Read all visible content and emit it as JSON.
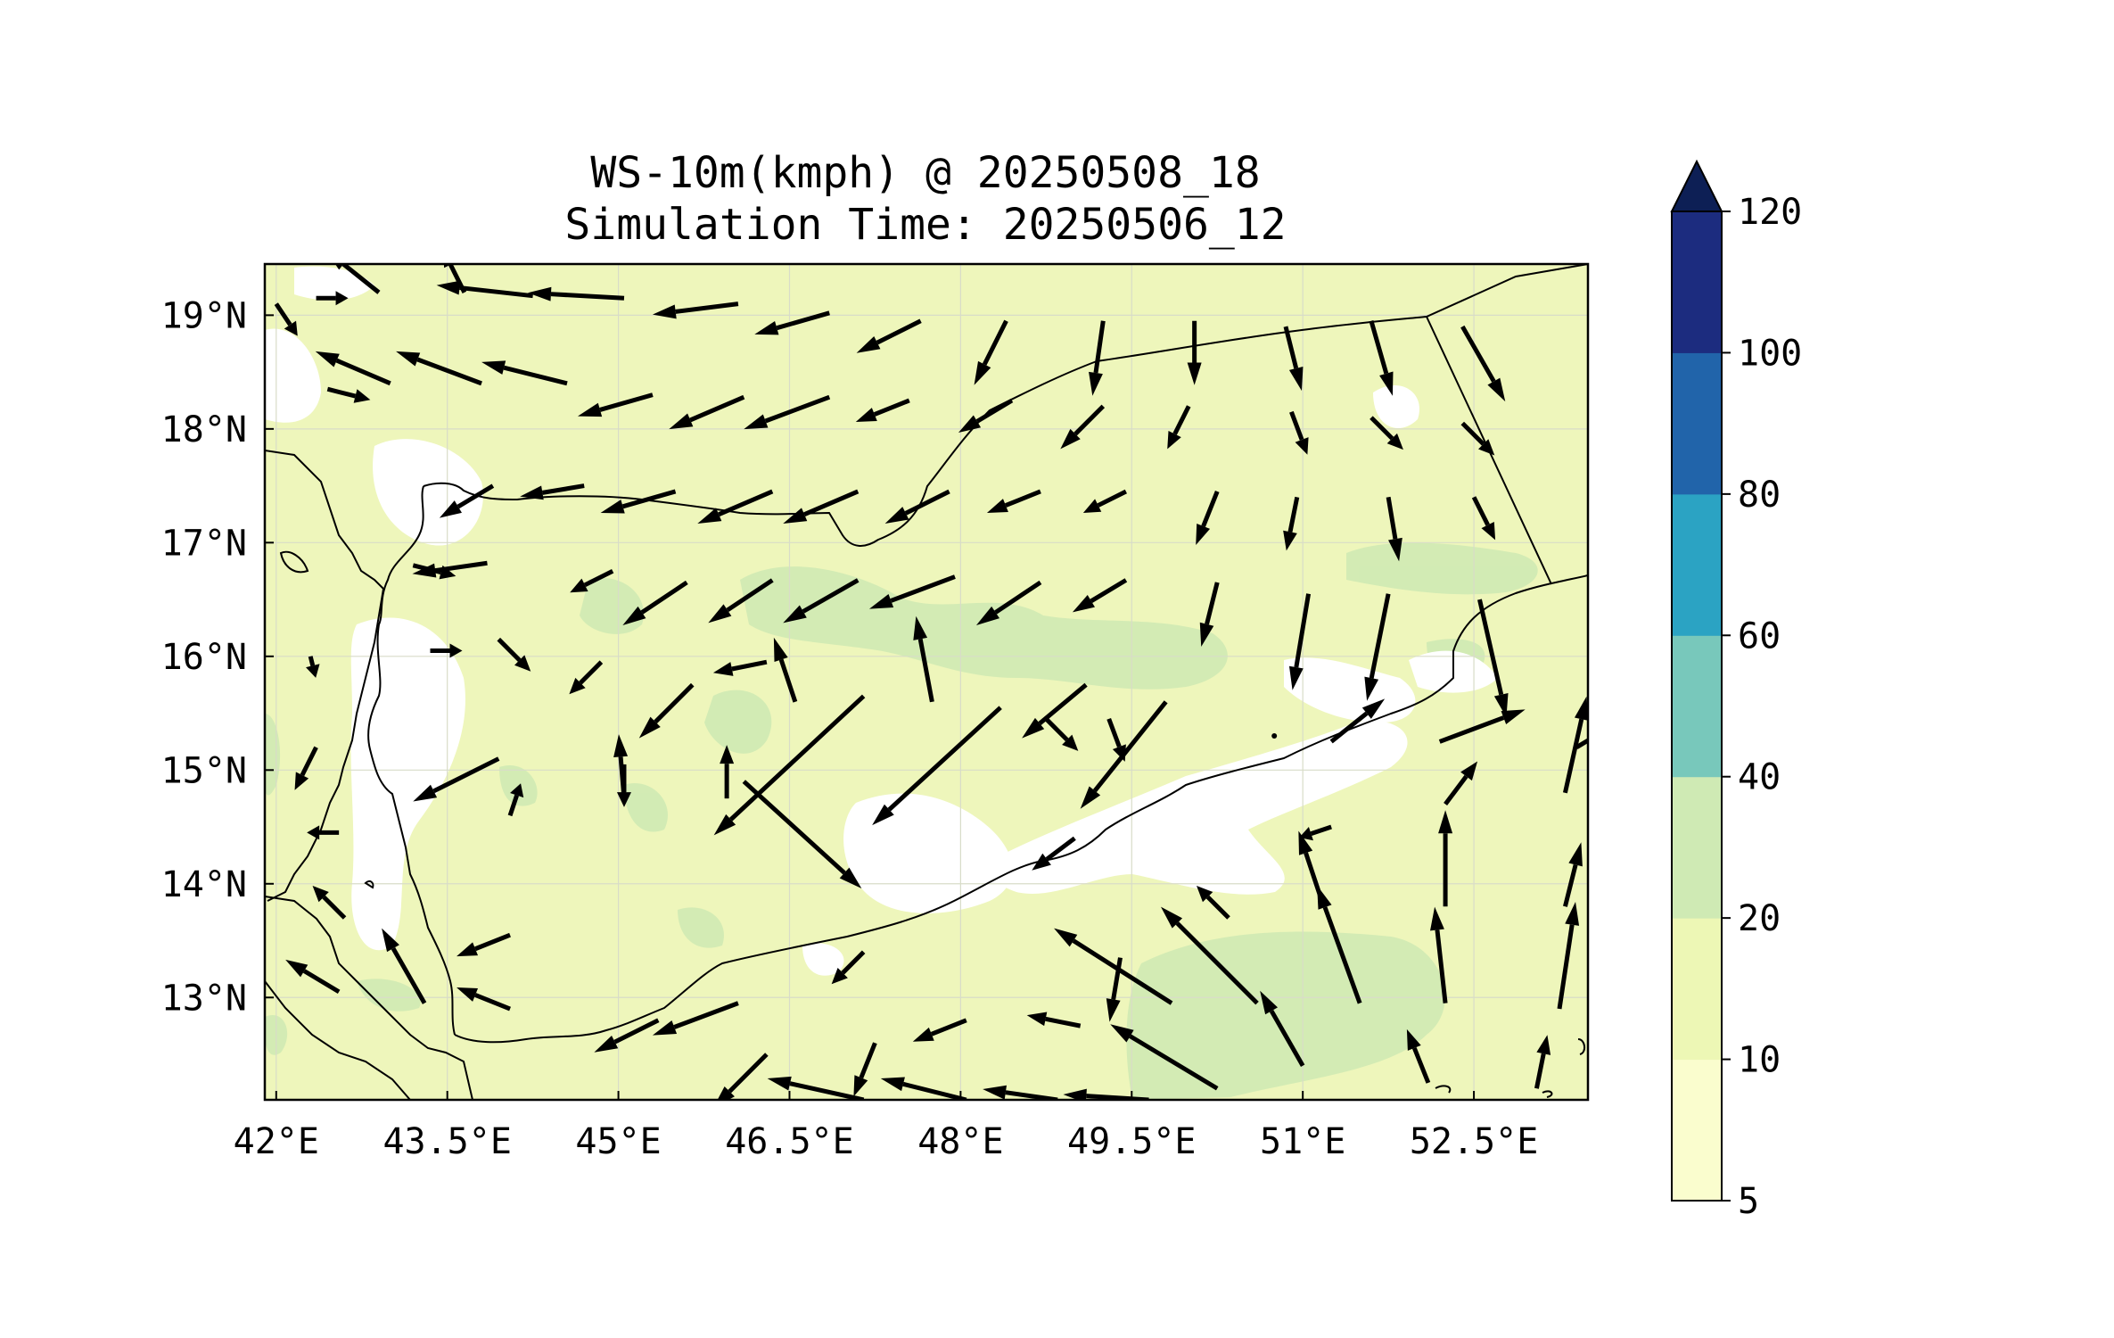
{
  "title": {
    "line1": "WS-10m(kmph) @ 20250508_18",
    "line2": "Simulation Time: 20250506_12"
  },
  "map": {
    "projection": "PlateCarree",
    "lon_range": [
      41.9,
      53.5
    ],
    "lat_range": [
      12.1,
      19.45
    ],
    "x_ticks": [
      {
        "lon": 42.0,
        "label": "42°E"
      },
      {
        "lon": 43.5,
        "label": "43.5°E"
      },
      {
        "lon": 45.0,
        "label": "45°E"
      },
      {
        "lon": 46.5,
        "label": "46.5°E"
      },
      {
        "lon": 48.0,
        "label": "48°E"
      },
      {
        "lon": 49.5,
        "label": "49.5°E"
      },
      {
        "lon": 51.0,
        "label": "51°E"
      },
      {
        "lon": 52.5,
        "label": "52.5°E"
      }
    ],
    "y_ticks": [
      {
        "lat": 19,
        "label": "19°N"
      },
      {
        "lat": 18,
        "label": "18°N"
      },
      {
        "lat": 17,
        "label": "17°N"
      },
      {
        "lat": 16,
        "label": "16°N"
      },
      {
        "lat": 15,
        "label": "15°N"
      },
      {
        "lat": 14,
        "label": "14°N"
      },
      {
        "lat": 13,
        "label": "13°N"
      }
    ],
    "gridlines": true,
    "background_color": "#eef6bb"
  },
  "colorbar": {
    "levels": [
      5,
      10,
      20,
      40,
      60,
      80,
      100,
      120
    ],
    "labels": [
      "5",
      "10",
      "20",
      "40",
      "60",
      "80",
      "100",
      "120"
    ],
    "colors": [
      "#fafdce",
      "#edf7b5",
      "#cfeab4",
      "#78c8bb",
      "#2ba3c3",
      "#2164aa",
      "#1c2c7f"
    ],
    "extend_color": "#0d1f55",
    "extend": "max"
  },
  "wind_vectors": [
    {
      "lon": 42.0,
      "lat": 19.1,
      "u": 2,
      "v": -3
    },
    {
      "lon": 42.35,
      "lat": 19.15,
      "u": 3,
      "v": 0
    },
    {
      "lon": 42.9,
      "lat": 19.2,
      "u": -5,
      "v": 4
    },
    {
      "lon": 43.65,
      "lat": 19.2,
      "u": -2,
      "v": 4
    },
    {
      "lon": 44.25,
      "lat": 19.17,
      "u": -9,
      "v": 1
    },
    {
      "lon": 45.05,
      "lat": 19.15,
      "u": -9,
      "v": 0.5
    },
    {
      "lon": 46.05,
      "lat": 19.1,
      "u": -8,
      "v": -1
    },
    {
      "lon": 46.85,
      "lat": 19.02,
      "u": -7,
      "v": -2
    },
    {
      "lon": 47.65,
      "lat": 18.95,
      "u": -6,
      "v": -3
    },
    {
      "lon": 48.4,
      "lat": 18.95,
      "u": -3,
      "v": -6
    },
    {
      "lon": 49.25,
      "lat": 18.95,
      "u": -1,
      "v": -7
    },
    {
      "lon": 50.05,
      "lat": 18.95,
      "u": 0,
      "v": -6
    },
    {
      "lon": 50.85,
      "lat": 18.9,
      "u": 1.5,
      "v": -6
    },
    {
      "lon": 51.6,
      "lat": 18.95,
      "u": 2,
      "v": -7
    },
    {
      "lon": 52.4,
      "lat": 18.9,
      "u": 4,
      "v": -7
    },
    {
      "lon": 42.45,
      "lat": 18.35,
      "u": 4,
      "v": -1
    },
    {
      "lon": 43.0,
      "lat": 18.4,
      "u": -7,
      "v": 3
    },
    {
      "lon": 43.8,
      "lat": 18.4,
      "u": -8,
      "v": 3
    },
    {
      "lon": 44.55,
      "lat": 18.4,
      "u": -8,
      "v": 2
    },
    {
      "lon": 45.3,
      "lat": 18.3,
      "u": -7,
      "v": -2
    },
    {
      "lon": 46.1,
      "lat": 18.28,
      "u": -7,
      "v": -3
    },
    {
      "lon": 46.85,
      "lat": 18.28,
      "u": -8,
      "v": -3
    },
    {
      "lon": 47.55,
      "lat": 18.25,
      "u": -5,
      "v": -2
    },
    {
      "lon": 48.45,
      "lat": 18.25,
      "u": -5,
      "v": -3
    },
    {
      "lon": 49.25,
      "lat": 18.2,
      "u": -4,
      "v": -4
    },
    {
      "lon": 50.0,
      "lat": 18.2,
      "u": -2,
      "v": -4
    },
    {
      "lon": 50.9,
      "lat": 18.15,
      "u": 1.5,
      "v": -4
    },
    {
      "lon": 51.6,
      "lat": 18.1,
      "u": 3,
      "v": -3
    },
    {
      "lon": 52.4,
      "lat": 18.05,
      "u": 3,
      "v": -3
    },
    {
      "lon": 43.9,
      "lat": 17.5,
      "u": -5,
      "v": -3
    },
    {
      "lon": 44.7,
      "lat": 17.5,
      "u": -6,
      "v": -1
    },
    {
      "lon": 45.5,
      "lat": 17.45,
      "u": -7,
      "v": -2
    },
    {
      "lon": 46.35,
      "lat": 17.45,
      "u": -7,
      "v": -3
    },
    {
      "lon": 47.1,
      "lat": 17.45,
      "u": -7,
      "v": -3
    },
    {
      "lon": 47.9,
      "lat": 17.45,
      "u": -6,
      "v": -3
    },
    {
      "lon": 48.7,
      "lat": 17.45,
      "u": -5,
      "v": -2
    },
    {
      "lon": 49.45,
      "lat": 17.45,
      "u": -4,
      "v": -2
    },
    {
      "lon": 50.25,
      "lat": 17.45,
      "u": -2,
      "v": -5
    },
    {
      "lon": 50.95,
      "lat": 17.4,
      "u": -1,
      "v": -5
    },
    {
      "lon": 51.75,
      "lat": 17.4,
      "u": 1,
      "v": -6
    },
    {
      "lon": 52.5,
      "lat": 17.4,
      "u": 2,
      "v": -4
    },
    {
      "lon": 43.2,
      "lat": 16.8,
      "u": 4,
      "v": -1
    },
    {
      "lon": 43.85,
      "lat": 16.82,
      "u": -7,
      "v": -1
    },
    {
      "lon": 44.95,
      "lat": 16.75,
      "u": -4,
      "v": -2
    },
    {
      "lon": 45.6,
      "lat": 16.65,
      "u": -6,
      "v": -4
    },
    {
      "lon": 46.35,
      "lat": 16.67,
      "u": -6,
      "v": -4
    },
    {
      "lon": 47.1,
      "lat": 16.67,
      "u": -7,
      "v": -4
    },
    {
      "lon": 47.95,
      "lat": 16.7,
      "u": -8,
      "v": -3
    },
    {
      "lon": 48.7,
      "lat": 16.65,
      "u": -6,
      "v": -4
    },
    {
      "lon": 49.45,
      "lat": 16.67,
      "u": -5,
      "v": -3
    },
    {
      "lon": 50.25,
      "lat": 16.65,
      "u": -1.5,
      "v": -6
    },
    {
      "lon": 51.05,
      "lat": 16.55,
      "u": -1.5,
      "v": -9
    },
    {
      "lon": 51.75,
      "lat": 16.55,
      "u": -2,
      "v": -10
    },
    {
      "lon": 52.55,
      "lat": 16.5,
      "u": 2.5,
      "v": -11
    },
    {
      "lon": 42.3,
      "lat": 16.0,
      "u": 0.5,
      "v": -2
    },
    {
      "lon": 43.35,
      "lat": 16.05,
      "u": 3,
      "v": 0
    },
    {
      "lon": 43.95,
      "lat": 16.15,
      "u": 3,
      "v": -3
    },
    {
      "lon": 44.85,
      "lat": 15.95,
      "u": -3,
      "v": -3
    },
    {
      "lon": 45.65,
      "lat": 15.75,
      "u": -5,
      "v": -5
    },
    {
      "lon": 46.3,
      "lat": 15.95,
      "u": -5,
      "v": -1
    },
    {
      "lon": 46.55,
      "lat": 15.6,
      "u": -2,
      "v": 6
    },
    {
      "lon": 47.15,
      "lat": 15.65,
      "u": -14,
      "v": -13
    },
    {
      "lon": 47.75,
      "lat": 15.6,
      "u": -1.5,
      "v": 8
    },
    {
      "lon": 48.35,
      "lat": 15.55,
      "u": -12,
      "v": -11
    },
    {
      "lon": 48.75,
      "lat": 15.45,
      "u": 3,
      "v": -3
    },
    {
      "lon": 49.1,
      "lat": 15.75,
      "u": -6,
      "v": -5
    },
    {
      "lon": 49.3,
      "lat": 15.45,
      "u": 1.5,
      "v": -4
    },
    {
      "lon": 49.8,
      "lat": 15.6,
      "u": -8,
      "v": -10
    },
    {
      "lon": 50.75,
      "lat": 15.3,
      "u": 0,
      "v": 0
    },
    {
      "lon": 51.25,
      "lat": 15.25,
      "u": 5,
      "v": 4
    },
    {
      "lon": 52.2,
      "lat": 15.25,
      "u": 8,
      "v": 3
    },
    {
      "lon": 53.4,
      "lat": 15.2,
      "u": 5,
      "v": 3
    },
    {
      "lon": 42.35,
      "lat": 15.2,
      "u": -2,
      "v": -4
    },
    {
      "lon": 43.95,
      "lat": 15.1,
      "u": -8,
      "v": -4
    },
    {
      "lon": 45.05,
      "lat": 15.05,
      "u": 0,
      "v": -4
    },
    {
      "lon": 45.05,
      "lat": 14.75,
      "u": -0.5,
      "v": 6
    },
    {
      "lon": 45.95,
      "lat": 14.75,
      "u": 0,
      "v": 5
    },
    {
      "lon": 46.1,
      "lat": 14.9,
      "u": 11,
      "v": -10
    },
    {
      "lon": 44.05,
      "lat": 14.6,
      "u": 1,
      "v": 3
    },
    {
      "lon": 42.55,
      "lat": 14.45,
      "u": -3,
      "v": 0
    },
    {
      "lon": 49.0,
      "lat": 14.4,
      "u": -4,
      "v": -3
    },
    {
      "lon": 51.25,
      "lat": 14.5,
      "u": -3,
      "v": -1
    },
    {
      "lon": 52.25,
      "lat": 14.7,
      "u": 3,
      "v": 4
    },
    {
      "lon": 53.3,
      "lat": 14.8,
      "u": 2,
      "v": 9
    },
    {
      "lon": 42.6,
      "lat": 13.7,
      "u": -3,
      "v": 3
    },
    {
      "lon": 44.05,
      "lat": 13.55,
      "u": -5,
      "v": -2
    },
    {
      "lon": 47.15,
      "lat": 13.4,
      "u": -3,
      "v": -3
    },
    {
      "lon": 49.4,
      "lat": 13.35,
      "u": -1,
      "v": -6
    },
    {
      "lon": 50.35,
      "lat": 13.7,
      "u": -3,
      "v": 3
    },
    {
      "lon": 51.15,
      "lat": 13.9,
      "u": -2,
      "v": 6
    },
    {
      "lon": 52.25,
      "lat": 13.8,
      "u": 0,
      "v": 9
    },
    {
      "lon": 53.3,
      "lat": 13.8,
      "u": 1.5,
      "v": 6
    },
    {
      "lon": 43.3,
      "lat": 12.95,
      "u": -4,
      "v": 7
    },
    {
      "lon": 42.55,
      "lat": 13.05,
      "u": -5,
      "v": 3
    },
    {
      "lon": 44.05,
      "lat": 12.9,
      "u": -5,
      "v": 2
    },
    {
      "lon": 45.35,
      "lat": 12.8,
      "u": -6,
      "v": -3
    },
    {
      "lon": 46.05,
      "lat": 12.95,
      "u": -8,
      "v": -3
    },
    {
      "lon": 49.85,
      "lat": 12.95,
      "u": -11,
      "v": 7
    },
    {
      "lon": 50.6,
      "lat": 12.95,
      "u": -9,
      "v": 9
    },
    {
      "lon": 51.5,
      "lat": 12.95,
      "u": -4,
      "v": 11
    },
    {
      "lon": 52.25,
      "lat": 12.95,
      "u": -1,
      "v": 9
    },
    {
      "lon": 53.25,
      "lat": 12.9,
      "u": 1.5,
      "v": 10
    },
    {
      "lon": 46.3,
      "lat": 12.5,
      "u": -5,
      "v": -5
    },
    {
      "lon": 47.25,
      "lat": 12.6,
      "u": -2,
      "v": -5
    },
    {
      "lon": 48.05,
      "lat": 12.8,
      "u": -5,
      "v": -2
    },
    {
      "lon": 49.05,
      "lat": 12.75,
      "u": -5,
      "v": 1
    },
    {
      "lon": 47.15,
      "lat": 12.1,
      "u": -9,
      "v": 2
    },
    {
      "lon": 48.05,
      "lat": 12.1,
      "u": -8,
      "v": 2
    },
    {
      "lon": 48.85,
      "lat": 12.1,
      "u": -7,
      "v": 1
    },
    {
      "lon": 49.65,
      "lat": 12.1,
      "u": -8,
      "v": 0.5
    },
    {
      "lon": 50.25,
      "lat": 12.2,
      "u": -10,
      "v": 6
    },
    {
      "lon": 51.0,
      "lat": 12.4,
      "u": -4,
      "v": 7
    },
    {
      "lon": 52.1,
      "lat": 12.25,
      "u": -2,
      "v": 5
    },
    {
      "lon": 53.05,
      "lat": 12.2,
      "u": 1,
      "v": 5
    }
  ]
}
